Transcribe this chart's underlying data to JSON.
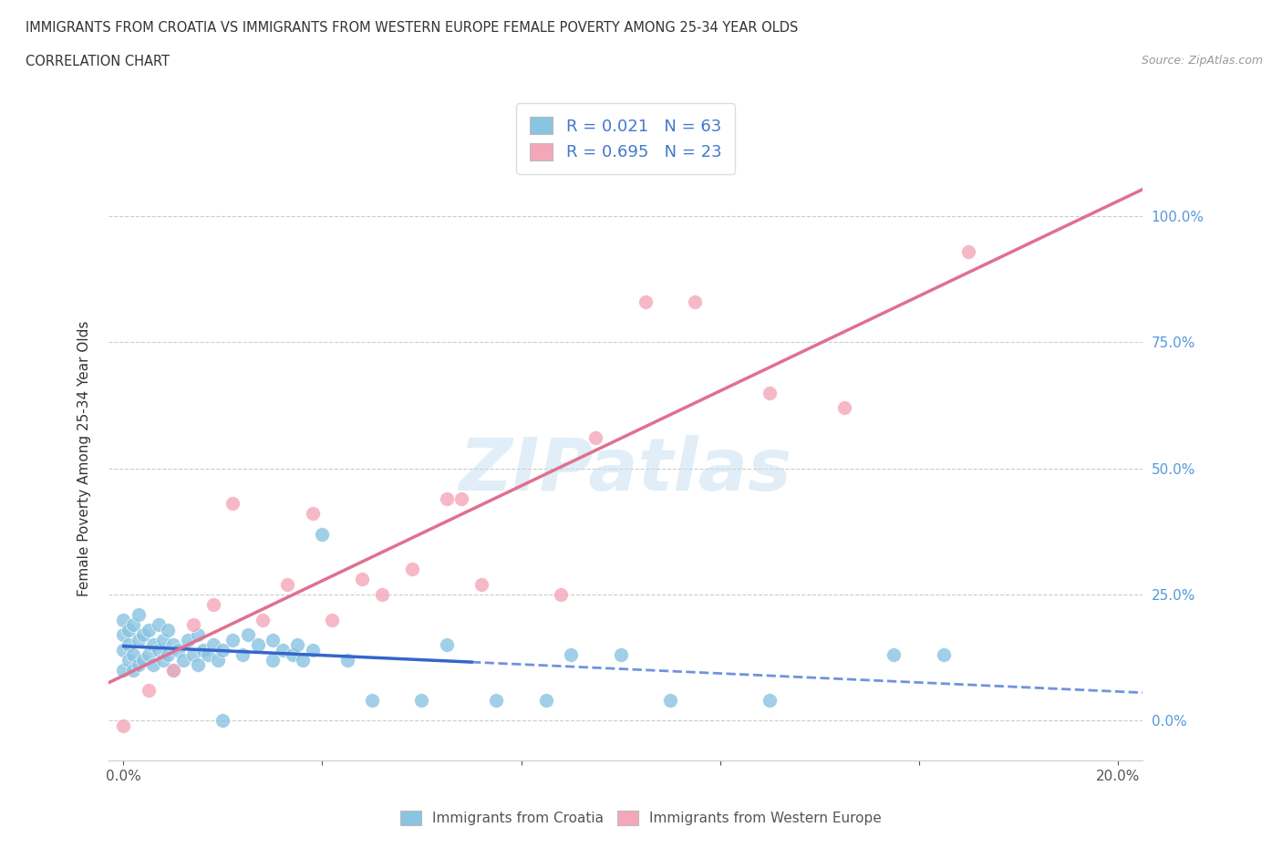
{
  "title_line1": "IMMIGRANTS FROM CROATIA VS IMMIGRANTS FROM WESTERN EUROPE FEMALE POVERTY AMONG 25-34 YEAR OLDS",
  "title_line2": "CORRELATION CHART",
  "source_text": "Source: ZipAtlas.com",
  "ylabel": "Female Poverty Among 25-34 Year Olds",
  "r_croatia": 0.021,
  "n_croatia": 63,
  "r_western": 0.695,
  "n_western": 23,
  "color_croatia": "#89c4e1",
  "color_western": "#f4a7b9",
  "line_color_croatia": "#3366cc",
  "line_color_western": "#e07090",
  "watermark": "ZIPatlas",
  "legend_label_croatia": "Immigrants from Croatia",
  "legend_label_western": "Immigrants from Western Europe",
  "croatia_x": [
    0.0,
    0.0,
    0.0,
    0.0,
    0.001,
    0.001,
    0.001,
    0.002,
    0.002,
    0.002,
    0.003,
    0.003,
    0.003,
    0.004,
    0.004,
    0.005,
    0.005,
    0.006,
    0.006,
    0.007,
    0.007,
    0.008,
    0.008,
    0.009,
    0.009,
    0.01,
    0.01,
    0.011,
    0.012,
    0.013,
    0.014,
    0.015,
    0.015,
    0.016,
    0.017,
    0.018,
    0.019,
    0.02,
    0.02,
    0.022,
    0.024,
    0.025,
    0.027,
    0.03,
    0.03,
    0.032,
    0.034,
    0.035,
    0.036,
    0.038,
    0.04,
    0.045,
    0.05,
    0.06,
    0.065,
    0.075,
    0.085,
    0.09,
    0.1,
    0.11,
    0.13,
    0.155,
    0.165
  ],
  "croatia_y": [
    0.1,
    0.14,
    0.17,
    0.2,
    0.12,
    0.15,
    0.18,
    0.1,
    0.13,
    0.19,
    0.11,
    0.16,
    0.21,
    0.12,
    0.17,
    0.13,
    0.18,
    0.11,
    0.15,
    0.14,
    0.19,
    0.12,
    0.16,
    0.13,
    0.18,
    0.1,
    0.15,
    0.14,
    0.12,
    0.16,
    0.13,
    0.11,
    0.17,
    0.14,
    0.13,
    0.15,
    0.12,
    0.0,
    0.14,
    0.16,
    0.13,
    0.17,
    0.15,
    0.12,
    0.16,
    0.14,
    0.13,
    0.15,
    0.12,
    0.14,
    0.37,
    0.12,
    0.04,
    0.04,
    0.15,
    0.04,
    0.04,
    0.13,
    0.13,
    0.04,
    0.04,
    0.13,
    0.13
  ],
  "western_x": [
    0.0,
    0.005,
    0.01,
    0.014,
    0.018,
    0.022,
    0.028,
    0.033,
    0.038,
    0.042,
    0.048,
    0.052,
    0.058,
    0.065,
    0.068,
    0.072,
    0.088,
    0.095,
    0.105,
    0.115,
    0.13,
    0.145,
    0.17
  ],
  "western_y": [
    -0.01,
    0.06,
    0.1,
    0.19,
    0.23,
    0.43,
    0.2,
    0.27,
    0.41,
    0.2,
    0.28,
    0.25,
    0.3,
    0.44,
    0.44,
    0.27,
    0.25,
    0.56,
    0.83,
    0.83,
    0.65,
    0.62,
    0.93
  ],
  "xlim": [
    -0.003,
    0.205
  ],
  "ylim": [
    -0.08,
    1.12
  ],
  "xtick_positions": [
    0.0,
    0.04,
    0.08,
    0.12,
    0.16,
    0.2
  ],
  "xtick_labels": [
    "0.0%",
    "",
    "",
    "",
    "",
    "20.0%"
  ],
  "ytick_positions": [
    0.0,
    0.25,
    0.5,
    0.75,
    1.0
  ],
  "ytick_labels": [
    "0.0%",
    "25.0%",
    "50.0%",
    "75.0%",
    "100.0%"
  ]
}
